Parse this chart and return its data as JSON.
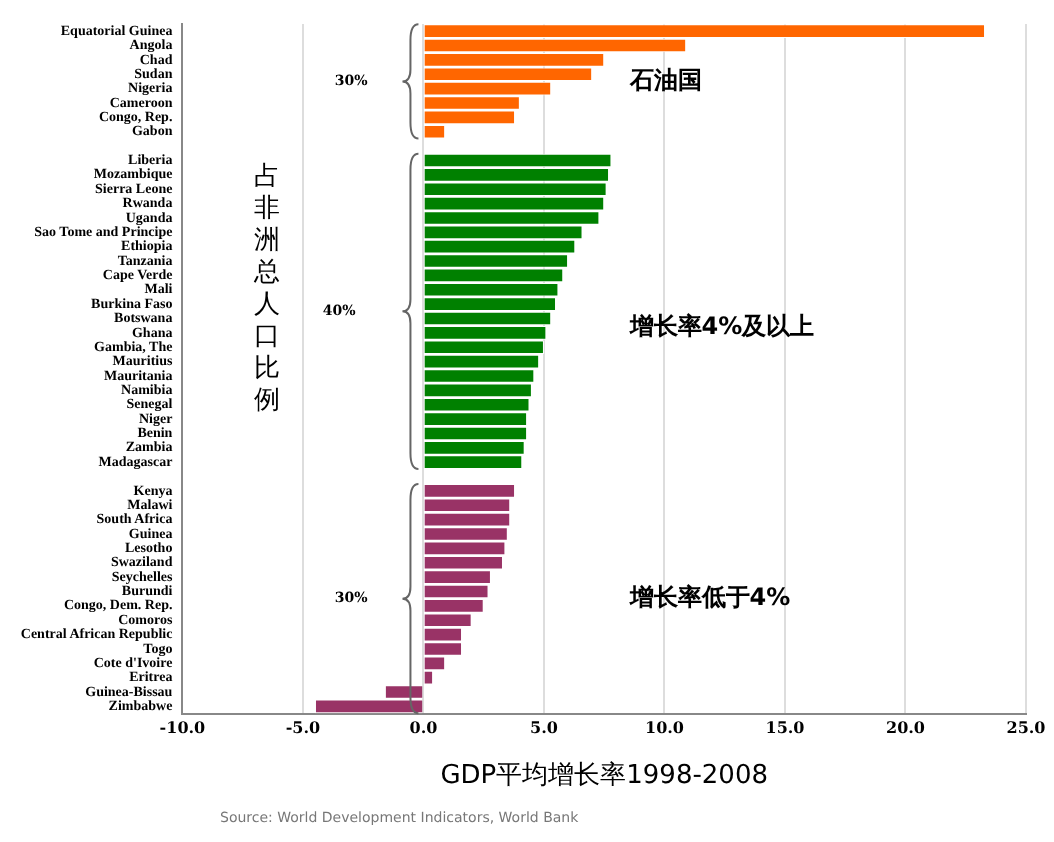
{
  "chart_data": {
    "type": "bar",
    "orientation": "horizontal",
    "xlabel": "GDP平均增长率1998-2008",
    "ylabel": "占非洲总人口比例",
    "categories": [
      "Equatorial Guinea",
      "Angola",
      "Chad",
      "Sudan",
      "Nigeria",
      "Cameroon",
      "Congo, Rep.",
      "Gabon",
      null,
      "Liberia",
      "Mozambique",
      "Sierra Leone",
      "Rwanda",
      "Uganda",
      "Sao Tome and Principe",
      "Ethiopia",
      "Tanzania",
      "Cape Verde",
      "Mali",
      "Burkina Faso",
      "Botswana",
      "Ghana",
      "Gambia, The",
      "Mauritius",
      "Mauritania",
      "Namibia",
      "Senegal",
      "Niger",
      "Benin",
      "Zambia",
      "Madagascar",
      null,
      "Kenya",
      "Malawi",
      "South Africa",
      "Guinea",
      "Lesotho",
      "Swaziland",
      "Seychelles",
      "Burundi",
      "Congo, Dem. Rep.",
      "Comoros",
      "Central African Republic",
      "Togo",
      "Cote d'Ivoire",
      "Eritrea",
      "Guinea-Bissau",
      "Zimbabwe"
    ],
    "series": [
      {
        "name": "石油国",
        "color": "#ff6600",
        "values": [
          23.3,
          10.9,
          7.5,
          7.0,
          5.3,
          4.0,
          3.8,
          0.9,
          null,
          null,
          null,
          null,
          null,
          null,
          null,
          null,
          null,
          null,
          null,
          null,
          null,
          null,
          null,
          null,
          null,
          null,
          null,
          null,
          null,
          null,
          null,
          null,
          null,
          null,
          null,
          null,
          null,
          null,
          null,
          null,
          null,
          null,
          null,
          null,
          null,
          null,
          null,
          null
        ]
      },
      {
        "name": "增长率4%及以上",
        "color": "#008000",
        "values": [
          null,
          null,
          null,
          null,
          null,
          null,
          null,
          null,
          null,
          7.8,
          7.7,
          7.6,
          7.5,
          7.3,
          6.6,
          6.3,
          6.0,
          5.8,
          5.6,
          5.5,
          5.3,
          5.1,
          5.0,
          4.8,
          4.6,
          4.5,
          4.4,
          4.3,
          4.3,
          4.2,
          4.1,
          null,
          null,
          null,
          null,
          null,
          null,
          null,
          null,
          null,
          null,
          null,
          null,
          null,
          null,
          null,
          null,
          null
        ]
      },
      {
        "name": "增长率低于4%",
        "color": "#993366",
        "values": [
          null,
          null,
          null,
          null,
          null,
          null,
          null,
          null,
          null,
          null,
          null,
          null,
          null,
          null,
          null,
          null,
          null,
          null,
          null,
          null,
          null,
          null,
          null,
          null,
          null,
          null,
          null,
          null,
          null,
          null,
          null,
          null,
          3.8,
          3.6,
          3.6,
          3.5,
          3.4,
          3.3,
          2.8,
          2.7,
          2.5,
          2.0,
          1.6,
          1.6,
          0.9,
          0.4,
          -1.6,
          -4.5
        ]
      }
    ],
    "xlim": [
      -10,
      25
    ],
    "xticks": [
      {
        "value": -10,
        "label": "-10.0"
      },
      {
        "value": -5,
        "label": "-5.0"
      },
      {
        "value": 0,
        "label": "0.0"
      },
      {
        "value": 5,
        "label": "5.0"
      },
      {
        "value": 10,
        "label": "10.0"
      },
      {
        "value": 15,
        "label": "15.0"
      },
      {
        "value": 20,
        "label": "20.0"
      },
      {
        "value": 25,
        "label": "25.0"
      }
    ],
    "grid": "x",
    "legend": false,
    "annotations": [
      "30%",
      "40%",
      "30%",
      "Source: World Development Indicators, World Bank"
    ]
  }
}
